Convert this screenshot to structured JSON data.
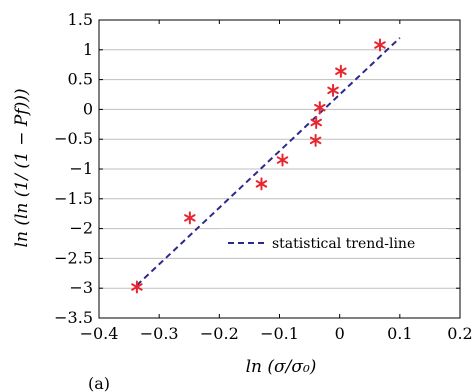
{
  "chart_data": {
    "type": "scatter",
    "xlabel": "ln (σ/σ₀)",
    "ylabel": "ln (ln (1/ (1 − Pf)))",
    "xlim": [
      -0.4,
      0.2
    ],
    "ylim": [
      -3.5,
      1.5
    ],
    "x_ticks": [
      "−0.4",
      "−0.3",
      "−0.2",
      "−0.1",
      "0",
      "0.1",
      "0.2"
    ],
    "y_ticks": [
      "1.5",
      "1",
      "0.5",
      "0",
      "−0.5",
      "−1",
      "−1.5",
      "−2",
      "−2.5",
      "−3",
      "−3.5"
    ],
    "grid": "horizontal",
    "legend_position": "bottom-right",
    "caption": "(a)",
    "series": [
      {
        "kind": "markers",
        "marker": "asterisk",
        "color": "#e8262f",
        "points": [
          {
            "x": -0.337,
            "y": -2.98
          },
          {
            "x": -0.249,
            "y": -1.82
          },
          {
            "x": -0.13,
            "y": -1.25
          },
          {
            "x": -0.095,
            "y": -0.85
          },
          {
            "x": -0.04,
            "y": -0.52
          },
          {
            "x": -0.039,
            "y": -0.22
          },
          {
            "x": -0.033,
            "y": 0.03
          },
          {
            "x": -0.011,
            "y": 0.32
          },
          {
            "x": 0.002,
            "y": 0.64
          },
          {
            "x": 0.067,
            "y": 1.08
          }
        ]
      },
      {
        "name": "statistical trend-line",
        "kind": "line",
        "style": "dashed",
        "color": "#2b2a8c",
        "x": [
          -0.337,
          0.1
        ],
        "y": [
          -2.95,
          1.2
        ]
      }
    ]
  }
}
